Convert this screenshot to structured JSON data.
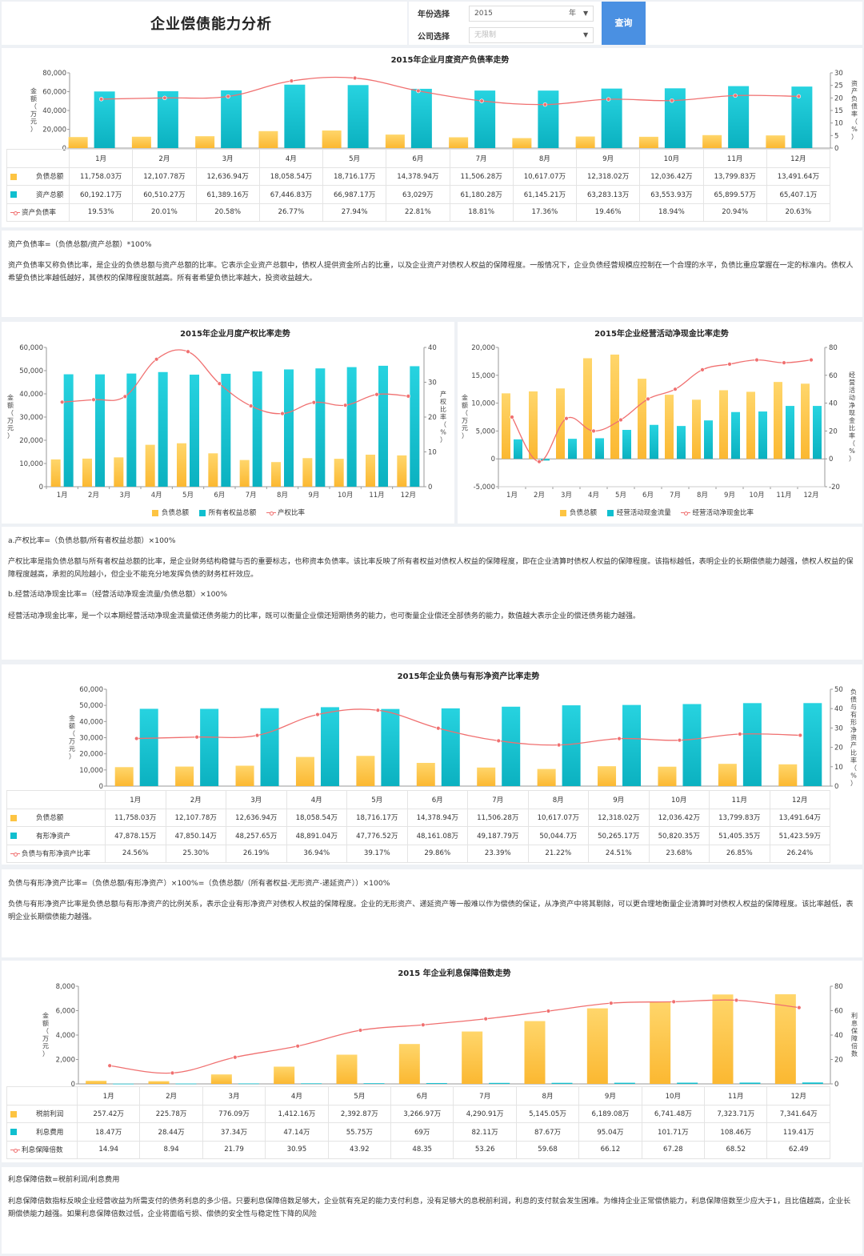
{
  "header": {
    "title": "企业偿债能力分析",
    "year_label": "年份选择",
    "year_value": "2015",
    "year_unit": "年",
    "company_label": "公司选择",
    "company_placeholder": "无限制",
    "query_button": "查询"
  },
  "colors": {
    "liab": "#fdc442",
    "teal": "#10bfcf",
    "line": "#f07070"
  },
  "months": [
    "1月",
    "2月",
    "3月",
    "4月",
    "5月",
    "6月",
    "7月",
    "8月",
    "9月",
    "10月",
    "11月",
    "12月"
  ],
  "chart_data": [
    {
      "id": "c1",
      "type": "bar+line",
      "title": "2015年企业月度资产负债率走势",
      "ylabel": "金额（万元）",
      "y2label": "资产负债率（%）",
      "ylim": [
        0,
        80000
      ],
      "yticks": [
        "80,000",
        "60,000",
        "40,000",
        "20,000",
        "0"
      ],
      "y2lim": [
        0,
        30
      ],
      "y2ticks": [
        "30",
        "25",
        "20",
        "15",
        "10",
        "5",
        "0"
      ],
      "series": [
        {
          "name": "负债总额",
          "kind": "bar",
          "values": [
            11758.03,
            12107.78,
            12636.94,
            18058.54,
            18716.17,
            14378.94,
            11506.28,
            10617.07,
            12318.02,
            12036.42,
            13799.83,
            13491.64
          ]
        },
        {
          "name": "资产总额",
          "kind": "bar",
          "values": [
            60192.17,
            60510.27,
            61389.16,
            67446.83,
            66987.17,
            63029,
            61180.28,
            61145.21,
            63283.13,
            63553.93,
            65899.57,
            65407.1
          ]
        },
        {
          "name": "资产负债率",
          "kind": "line",
          "values": [
            19.53,
            20.01,
            20.58,
            26.77,
            27.94,
            22.81,
            18.81,
            17.36,
            19.46,
            18.94,
            20.94,
            20.63
          ]
        }
      ]
    },
    {
      "id": "c2",
      "type": "bar+line",
      "title": "2015年企业月度产权比率走势",
      "ylabel": "金额（万元）",
      "y2label": "产权比率（%）",
      "ylim": [
        0,
        60000
      ],
      "yticks": [
        "60,000",
        "50,000",
        "40,000",
        "30,000",
        "20,000",
        "10,000",
        "0"
      ],
      "y2lim": [
        0,
        40
      ],
      "y2ticks": [
        "40",
        "30",
        "20",
        "10",
        "0"
      ],
      "series": [
        {
          "name": "负债总额",
          "kind": "bar",
          "values": [
            11758.03,
            12107.78,
            12636.94,
            18058.54,
            18716.17,
            14378.94,
            11506.28,
            10617.07,
            12318.02,
            12036.42,
            13799.83,
            13491.64
          ]
        },
        {
          "name": "所有者权益总额",
          "kind": "bar",
          "values": [
            48434,
            48402,
            48752,
            49388,
            48271,
            48650,
            49674,
            50528,
            50965,
            51517,
            52100,
            51915
          ]
        },
        {
          "name": "产权比率",
          "kind": "line",
          "values": [
            24.3,
            25.0,
            25.9,
            36.6,
            38.8,
            29.6,
            23.2,
            21.0,
            24.2,
            23.4,
            26.5,
            26.0
          ]
        }
      ]
    },
    {
      "id": "c3",
      "type": "bar+line",
      "title": "2015年企业经营活动净现金比率走势",
      "ylabel": "金额（万元）",
      "y2label": "经营活动净现金比率（%）",
      "ylim": [
        -5000,
        20000
      ],
      "yticks": [
        "20,000",
        "15,000",
        "10,000",
        "5,000",
        "0",
        "-5,000"
      ],
      "y2lim": [
        -20,
        80
      ],
      "y2ticks": [
        "80",
        "60",
        "40",
        "20",
        "0",
        "-20"
      ],
      "series": [
        {
          "name": "负债总额",
          "kind": "bar",
          "values": [
            11758.03,
            12107.78,
            12636.94,
            18058.54,
            18716.17,
            14378.94,
            11506.28,
            10617.07,
            12318.02,
            12036.42,
            13799.83,
            13491.64
          ]
        },
        {
          "name": "经营活动现金流量",
          "kind": "bar",
          "values": [
            3500,
            -300,
            3600,
            3700,
            5200,
            6100,
            5900,
            6900,
            8400,
            8500,
            9500,
            9500
          ]
        },
        {
          "name": "经营活动净现金比率",
          "kind": "line",
          "values": [
            30,
            -2,
            29,
            20,
            28,
            43,
            50,
            64,
            68,
            71,
            69,
            71
          ]
        }
      ]
    },
    {
      "id": "c4",
      "type": "bar+line",
      "title": "2015年企业负债与有形净资产比率走势",
      "ylabel": "金额（万元）",
      "y2label": "负债与有形净资产比率（%）",
      "ylim": [
        0,
        60000
      ],
      "yticks": [
        "60,000",
        "50,000",
        "40,000",
        "30,000",
        "20,000",
        "10,000",
        "0"
      ],
      "y2lim": [
        0,
        50
      ],
      "y2ticks": [
        "50",
        "40",
        "30",
        "20",
        "10",
        "0"
      ],
      "series": [
        {
          "name": "负债总额",
          "kind": "bar",
          "values": [
            11758.03,
            12107.78,
            12636.94,
            18058.54,
            18716.17,
            14378.94,
            11506.28,
            10617.07,
            12318.02,
            12036.42,
            13799.83,
            13491.64
          ]
        },
        {
          "name": "有形净资产",
          "kind": "bar",
          "values": [
            47878.15,
            47850.14,
            48257.65,
            48891.04,
            47776.52,
            48161.08,
            49187.79,
            50044.7,
            50265.17,
            50820.35,
            51405.35,
            51423.59
          ]
        },
        {
          "name": "负债与有形净资产比率",
          "kind": "line",
          "values": [
            24.56,
            25.3,
            26.19,
            36.94,
            39.17,
            29.86,
            23.39,
            21.22,
            24.51,
            23.68,
            26.85,
            26.24
          ]
        }
      ]
    },
    {
      "id": "c5",
      "type": "bar+line",
      "title": "2015 年企业利息保障倍数走势",
      "ylabel": "金额（万元）",
      "y2label": "利息保障倍数",
      "ylim": [
        0,
        8000
      ],
      "yticks": [
        "8,000",
        "6,000",
        "4,000",
        "2,000",
        "0"
      ],
      "y2lim": [
        0,
        80
      ],
      "y2ticks": [
        "80",
        "60",
        "40",
        "20",
        "0"
      ],
      "series": [
        {
          "name": "税前利润",
          "kind": "bar",
          "values": [
            257.42,
            225.78,
            776.09,
            1412.16,
            2392.87,
            3266.97,
            4290.91,
            5145.05,
            6189.08,
            6741.48,
            7323.71,
            7341.64
          ]
        },
        {
          "name": "利息费用",
          "kind": "bar",
          "values": [
            18.47,
            28.44,
            37.34,
            47.14,
            55.75,
            69,
            82.11,
            87.67,
            95.04,
            101.71,
            108.46,
            119.41
          ]
        },
        {
          "name": "利息保障倍数",
          "kind": "line",
          "values": [
            14.94,
            8.94,
            21.79,
            30.95,
            43.92,
            48.35,
            53.26,
            59.68,
            66.12,
            67.28,
            68.52,
            62.49
          ]
        }
      ]
    }
  ],
  "tables": {
    "t1": {
      "rows": [
        {
          "label": "负债总额",
          "cells": [
            "11,758.03万",
            "12,107.78万",
            "12,636.94万",
            "18,058.54万",
            "18,716.17万",
            "14,378.94万",
            "11,506.28万",
            "10,617.07万",
            "12,318.02万",
            "12,036.42万",
            "13,799.83万",
            "13,491.64万"
          ]
        },
        {
          "label": "资产总额",
          "cells": [
            "60,192.17万",
            "60,510.27万",
            "61,389.16万",
            "67,446.83万",
            "66,987.17万",
            "63,029万",
            "61,180.28万",
            "61,145.21万",
            "63,283.13万",
            "63,553.93万",
            "65,899.57万",
            "65,407.1万"
          ]
        },
        {
          "label": "资产负债率",
          "cells": [
            "19.53%",
            "20.01%",
            "20.58%",
            "26.77%",
            "27.94%",
            "22.81%",
            "18.81%",
            "17.36%",
            "19.46%",
            "18.94%",
            "20.94%",
            "20.63%"
          ]
        }
      ]
    },
    "t4": {
      "rows": [
        {
          "label": "负债总额",
          "cells": [
            "11,758.03万",
            "12,107.78万",
            "12,636.94万",
            "18,058.54万",
            "18,716.17万",
            "14,378.94万",
            "11,506.28万",
            "10,617.07万",
            "12,318.02万",
            "12,036.42万",
            "13,799.83万",
            "13,491.64万"
          ]
        },
        {
          "label": "有形净资产",
          "cells": [
            "47,878.15万",
            "47,850.14万",
            "48,257.65万",
            "48,891.04万",
            "47,776.52万",
            "48,161.08万",
            "49,187.79万",
            "50,044.7万",
            "50,265.17万",
            "50,820.35万",
            "51,405.35万",
            "51,423.59万"
          ]
        },
        {
          "label": "负债与有形净资产比率",
          "cells": [
            "24.56%",
            "25.30%",
            "26.19%",
            "36.94%",
            "39.17%",
            "29.86%",
            "23.39%",
            "21.22%",
            "24.51%",
            "23.68%",
            "26.85%",
            "26.24%"
          ]
        }
      ]
    },
    "t5": {
      "rows": [
        {
          "label": "税前利润",
          "cells": [
            "257.42万",
            "225.78万",
            "776.09万",
            "1,412.16万",
            "2,392.87万",
            "3,266.97万",
            "4,290.91万",
            "5,145.05万",
            "6,189.08万",
            "6,741.48万",
            "7,323.71万",
            "7,341.64万"
          ]
        },
        {
          "label": "利息费用",
          "cells": [
            "18.47万",
            "28.44万",
            "37.34万",
            "47.14万",
            "55.75万",
            "69万",
            "82.11万",
            "87.67万",
            "95.04万",
            "101.71万",
            "108.46万",
            "119.41万"
          ]
        },
        {
          "label": "利息保障倍数",
          "cells": [
            "14.94",
            "8.94",
            "21.79",
            "30.95",
            "43.92",
            "48.35",
            "53.26",
            "59.68",
            "66.12",
            "67.28",
            "68.52",
            "62.49"
          ]
        }
      ]
    }
  },
  "notes": {
    "n1": {
      "formula": "资产负债率=（负债总额/资产总额）*100%",
      "body": "资产负债率又称负债比率，是企业的负债总额与资产总额的比率。它表示企业资产总额中，债权人提供资金所占的比重，以及企业资产对债权人权益的保障程度。一般情况下，企业负债经营规模应控制在一个合理的水平，负债比重应掌握在一定的标准内。债权人希望负债比率越低越好，其债权的保障程度就越高。所有者希望负债比率越大，投资收益越大。"
    },
    "n2": {
      "formula_a": "a.产权比率=（负债总额/所有者权益总额）×100%",
      "body_a": "产权比率是指负债总额与所有者权益总额的比率，是企业财务结构稳健与否的重要标志，也称资本负债率。该比率反映了所有者权益对债权人权益的保障程度，即在企业清算时债权人权益的保障程度。该指标越低，表明企业的长期偿债能力越强，债权人权益的保障程度越高，承担的风险越小，但企业不能充分地发挥负债的财务杠杆效应。",
      "formula_b": "b.经营活动净现金比率=（经营活动净现金流量/负债总额）×100%",
      "body_b": "经营活动净现金比率，是一个以本期经营活动净现金流量偿还债务能力的比率，既可以衡量企业偿还短期债务的能力，也可衡量企业偿还全部债务的能力，数值越大表示企业的偿还债务能力越强。"
    },
    "n4": {
      "formula": "负债与有形净资产比率=（负债总额/有形净资产）×100%=（负债总额/（所有者权益-无形资产-递延资产））×100%",
      "body": "负债与有形净资产比率是负债总额与有形净资产的比例关系，表示企业有形净资产对债权人权益的保障程度。企业的无形资产、递延资产等一般难以作为偿债的保证，从净资产中将其剔除，可以更合理地衡量企业清算时对债权人权益的保障程度。该比率越低，表明企业长期偿债能力越强。"
    },
    "n5": {
      "formula": "利息保障倍数=税前利润/利息费用",
      "body": "利息保障倍数指标反映企业经营收益为所需支付的债务利息的多少倍。只要利息保障倍数足够大，企业就有充足的能力支付利息，没有足够大的息税前利润，利息的支付就会发生困难。为维持企业正常偿债能力，利息保障倍数至少应大于1，且比值越高，企业长期偿债能力越强。如果利息保障倍数过低，企业将面临亏损、偿债的安全性与稳定性下降的风险"
    }
  }
}
